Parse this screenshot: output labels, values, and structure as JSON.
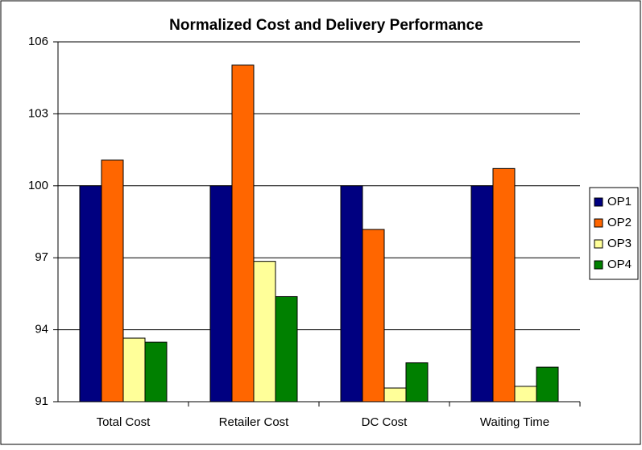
{
  "chart_data": {
    "type": "bar",
    "title": "Normalized Cost and Delivery Performance",
    "categories": [
      "Total Cost",
      "Retailer Cost",
      "DC Cost",
      "Waiting Time"
    ],
    "series": [
      {
        "name": "OP1",
        "color": "#000080",
        "values": [
          100,
          100,
          100,
          100
        ]
      },
      {
        "name": "OP2",
        "color": "#ff6600",
        "values": [
          101.07,
          105.03,
          98.18,
          100.72
        ]
      },
      {
        "name": "OP3",
        "color": "#ffff99",
        "values": [
          93.65,
          96.85,
          91.57,
          91.64
        ]
      },
      {
        "name": "OP4",
        "color": "#008000",
        "values": [
          93.48,
          95.38,
          92.62,
          92.44
        ]
      }
    ],
    "ylim": [
      91,
      106
    ],
    "yticks": [
      91,
      94,
      97,
      100,
      103,
      106
    ],
    "grid": true,
    "legend": "right"
  }
}
